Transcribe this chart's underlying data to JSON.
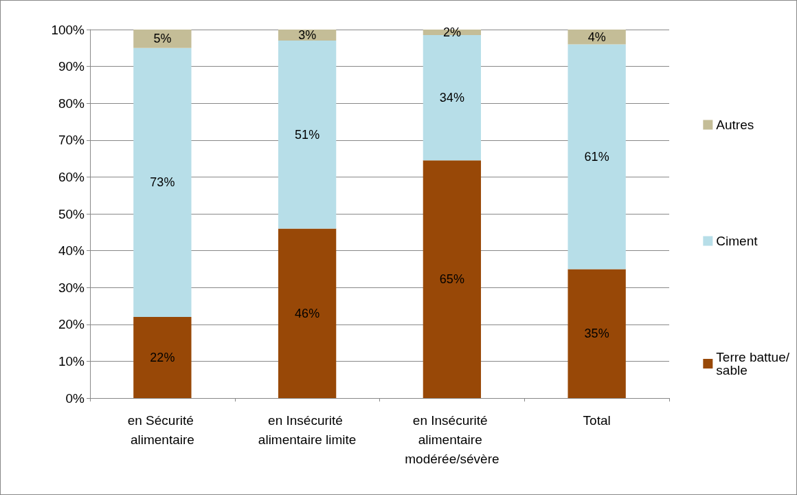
{
  "chart_data": {
    "type": "bar",
    "stacked": true,
    "categories": [
      "en Sécurité alimentaire",
      "en Insécurité alimentaire limite",
      "en Insécurité alimentaire modérée/sévère",
      "Total"
    ],
    "series": [
      {
        "name": "Terre battue/sable",
        "color": "#984807",
        "values": [
          22,
          46,
          64.5,
          35
        ],
        "value_labels": [
          "22%",
          "46%",
          "65%",
          "35%"
        ]
      },
      {
        "name": "Ciment",
        "color": "#b7dee8",
        "values": [
          73,
          51,
          34,
          61
        ],
        "value_labels": [
          "73%",
          "51%",
          "34%",
          "61%"
        ]
      },
      {
        "name": "Autres",
        "color": "#c4bd97",
        "values": [
          5,
          3,
          1.5,
          4
        ],
        "value_labels": [
          "5%",
          "3%",
          "2%",
          "4%"
        ]
      }
    ],
    "ylim": [
      0,
      100
    ],
    "yticks": [
      {
        "value": 0,
        "label": "0%"
      },
      {
        "value": 10,
        "label": "10%"
      },
      {
        "value": 20,
        "label": "20%"
      },
      {
        "value": 30,
        "label": "30%"
      },
      {
        "value": 40,
        "label": "40%"
      },
      {
        "value": 50,
        "label": "50%"
      },
      {
        "value": 60,
        "label": "60%"
      },
      {
        "value": 70,
        "label": "70%"
      },
      {
        "value": 80,
        "label": "80%"
      },
      {
        "value": 90,
        "label": "90%"
      },
      {
        "value": 100,
        "label": "100%"
      }
    ],
    "grid": "y",
    "legend": "right"
  }
}
